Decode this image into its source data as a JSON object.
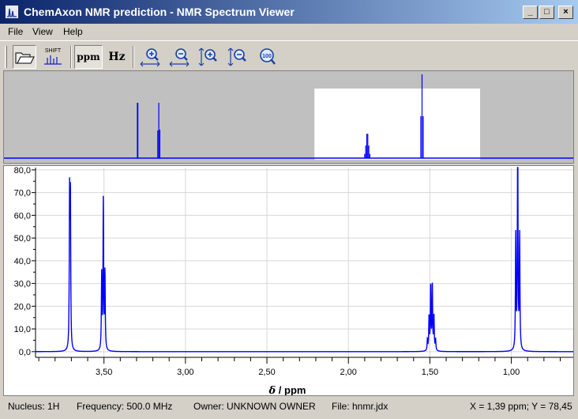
{
  "window": {
    "title": "ChemAxon NMR prediction - NMR Spectrum Viewer",
    "controls": {
      "minimize": "_",
      "maximize": "□",
      "close": "×"
    }
  },
  "menu": [
    "File",
    "View",
    "Help"
  ],
  "toolbar": {
    "shift_label": "SHIFT",
    "ppm_label": "ppm",
    "hz_label": "Hz",
    "zoom100_label": "100",
    "icons": [
      "open-folder-icon",
      "shift-spectrum-icon",
      "zoom-in-horizontal-icon",
      "zoom-out-horizontal-icon",
      "zoom-in-vertical-icon",
      "zoom-out-vertical-icon",
      "zoom-100-icon"
    ]
  },
  "colors": {
    "spectrum": "#0000ff",
    "overview_bg": "#c0c0c0",
    "grid": "#d8d8d8"
  },
  "chart_data": {
    "type": "line",
    "xlabel_symbol": "δ",
    "xlabel_unit": " / ppm",
    "ylabel": "",
    "x_reversed": true,
    "xlim": [
      3.92,
      0.62
    ],
    "ylim": [
      -2.5,
      81
    ],
    "xticks": [
      3.5,
      3.0,
      2.5,
      2.0,
      1.5,
      1.0
    ],
    "xtick_labels": [
      "3,50",
      "3,00",
      "2,50",
      "2,00",
      "1,50",
      "1,00"
    ],
    "yticks": [
      0,
      10,
      20,
      30,
      40,
      50,
      60,
      70,
      80
    ],
    "ytick_labels": [
      "0,0",
      "10,0",
      "20,0",
      "30,0",
      "40,0",
      "50,0",
      "60,0",
      "70,0",
      "80,0"
    ],
    "grid": true,
    "peaks": [
      {
        "center": 3.71,
        "lines": [
          {
            "x": 3.711,
            "y": 66
          },
          {
            "x": 3.706,
            "y": 66
          }
        ]
      },
      {
        "center": 3.5,
        "lines": [
          {
            "x": 3.514,
            "y": 33
          },
          {
            "x": 3.504,
            "y": 66
          },
          {
            "x": 3.494,
            "y": 34
          }
        ]
      },
      {
        "center": 1.49,
        "lines": [
          {
            "x": 1.515,
            "y": 5
          },
          {
            "x": 1.505,
            "y": 15
          },
          {
            "x": 1.495,
            "y": 29
          },
          {
            "x": 1.485,
            "y": 29
          },
          {
            "x": 1.475,
            "y": 15
          },
          {
            "x": 1.465,
            "y": 5
          }
        ]
      },
      {
        "center": 0.96,
        "lines": [
          {
            "x": 0.973,
            "y": 50
          },
          {
            "x": 0.961,
            "y": 100
          },
          {
            "x": 0.949,
            "y": 50
          }
        ]
      }
    ],
    "overview": {
      "xlim": [
        5.0,
        -0.5
      ],
      "window_xlim": [
        2.0,
        0.4
      ],
      "scale": 1.0
    }
  },
  "status": {
    "nucleus": "Nucleus: 1H",
    "frequency": "Frequency: 500.0 MHz",
    "owner": "Owner: UNKNOWN OWNER",
    "file": "File: hnmr.jdx",
    "cursor": "X = 1,39 ppm; Y = 78,45"
  }
}
